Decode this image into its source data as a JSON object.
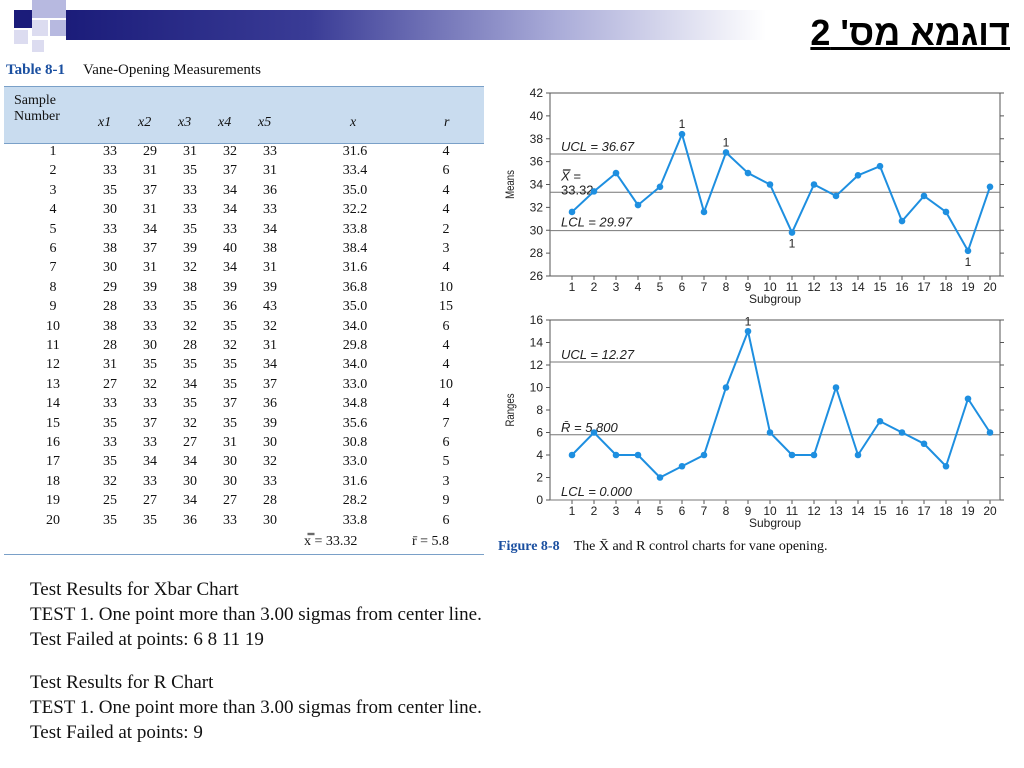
{
  "slide": {
    "title": "דוגמא מס' 2"
  },
  "table": {
    "label": "Table 8-1",
    "title": "Vane-Opening Measurements",
    "header_sample": "Sample",
    "header_number": "Number",
    "columns": [
      "x1",
      "x2",
      "x3",
      "x4",
      "x5",
      "x",
      "r"
    ],
    "rows": [
      [
        "1",
        "33",
        "29",
        "31",
        "32",
        "33",
        "31.6",
        "4"
      ],
      [
        "2",
        "33",
        "31",
        "35",
        "37",
        "31",
        "33.4",
        "6"
      ],
      [
        "3",
        "35",
        "37",
        "33",
        "34",
        "36",
        "35.0",
        "4"
      ],
      [
        "4",
        "30",
        "31",
        "33",
        "34",
        "33",
        "32.2",
        "4"
      ],
      [
        "5",
        "33",
        "34",
        "35",
        "33",
        "34",
        "33.8",
        "2"
      ],
      [
        "6",
        "38",
        "37",
        "39",
        "40",
        "38",
        "38.4",
        "3"
      ],
      [
        "7",
        "30",
        "31",
        "32",
        "34",
        "31",
        "31.6",
        "4"
      ],
      [
        "8",
        "29",
        "39",
        "38",
        "39",
        "39",
        "36.8",
        "10"
      ],
      [
        "9",
        "28",
        "33",
        "35",
        "36",
        "43",
        "35.0",
        "15"
      ],
      [
        "10",
        "38",
        "33",
        "32",
        "35",
        "32",
        "34.0",
        "6"
      ],
      [
        "11",
        "28",
        "30",
        "28",
        "32",
        "31",
        "29.8",
        "4"
      ],
      [
        "12",
        "31",
        "35",
        "35",
        "35",
        "34",
        "34.0",
        "4"
      ],
      [
        "13",
        "27",
        "32",
        "34",
        "35",
        "37",
        "33.0",
        "10"
      ],
      [
        "14",
        "33",
        "33",
        "35",
        "37",
        "36",
        "34.8",
        "4"
      ],
      [
        "15",
        "35",
        "37",
        "32",
        "35",
        "39",
        "35.6",
        "7"
      ],
      [
        "16",
        "33",
        "33",
        "27",
        "31",
        "30",
        "30.8",
        "6"
      ],
      [
        "17",
        "35",
        "34",
        "34",
        "30",
        "32",
        "33.0",
        "5"
      ],
      [
        "18",
        "32",
        "33",
        "30",
        "30",
        "33",
        "31.6",
        "3"
      ],
      [
        "19",
        "25",
        "27",
        "34",
        "27",
        "28",
        "28.2",
        "9"
      ],
      [
        "20",
        "35",
        "35",
        "36",
        "33",
        "30",
        "33.8",
        "6"
      ]
    ],
    "footer_xbarbar": "x̿ = 33.32",
    "footer_rbar": "r̄ = 5.8"
  },
  "chart_data": [
    {
      "type": "line",
      "ylabel": "Means",
      "xlabel": "Subgroup",
      "ylim": [
        26,
        42
      ],
      "yticks": [
        26,
        28,
        30,
        32,
        34,
        36,
        38,
        40,
        42
      ],
      "x": [
        1,
        2,
        3,
        4,
        5,
        6,
        7,
        8,
        9,
        10,
        11,
        12,
        13,
        14,
        15,
        16,
        17,
        18,
        19,
        20
      ],
      "values": [
        31.6,
        33.4,
        35.0,
        32.2,
        33.8,
        38.4,
        31.6,
        36.8,
        35.0,
        34.0,
        29.8,
        34.0,
        33.0,
        34.8,
        35.6,
        30.8,
        33.0,
        31.6,
        28.2,
        33.8
      ],
      "ucl": 36.67,
      "center": 33.32,
      "lcl": 29.97,
      "ucl_label": "UCL = 36.67",
      "center_label": "X̿ =",
      "center_value_label": "33.32",
      "lcl_label": "LCL = 29.97",
      "flagged_points": [
        6,
        8,
        11,
        19
      ],
      "flag_label": "1",
      "grid": false
    },
    {
      "type": "line",
      "ylabel": "Ranges",
      "xlabel": "Subgroup",
      "ylim": [
        0,
        16
      ],
      "yticks": [
        0,
        2,
        4,
        6,
        8,
        10,
        12,
        14,
        16
      ],
      "x": [
        1,
        2,
        3,
        4,
        5,
        6,
        7,
        8,
        9,
        10,
        11,
        12,
        13,
        14,
        15,
        16,
        17,
        18,
        19,
        20
      ],
      "values": [
        4,
        6,
        4,
        4,
        2,
        3,
        4,
        10,
        15,
        6,
        4,
        4,
        10,
        4,
        7,
        6,
        5,
        3,
        9,
        6
      ],
      "ucl": 12.27,
      "center": 5.8,
      "lcl": 0.0,
      "ucl_label": "UCL = 12.27",
      "center_label": "R̄ = 5.800",
      "lcl_label": "LCL = 0.000",
      "flagged_points": [
        9
      ],
      "flag_label": "1",
      "grid": false
    }
  ],
  "figure": {
    "label": "Figure 8-8",
    "caption": "The X̄ and R control charts for vane opening."
  },
  "results": {
    "xbar_title": "Test Results for Xbar Chart",
    "xbar_test": "TEST 1. One point more than 3.00 sigmas from center line.",
    "xbar_failed": "Test Failed at points: 6 8 11 19",
    "r_title": "Test Results for R Chart",
    "r_test": "TEST 1. One point more than 3.00 sigmas from center line.",
    "r_failed": "Test Failed at points: 9"
  },
  "colors": {
    "series": "#1e8fe0",
    "header_navy": "#1b1c7a",
    "table_header_bg": "#c9dcef",
    "label_blue": "#1a4fa0"
  }
}
